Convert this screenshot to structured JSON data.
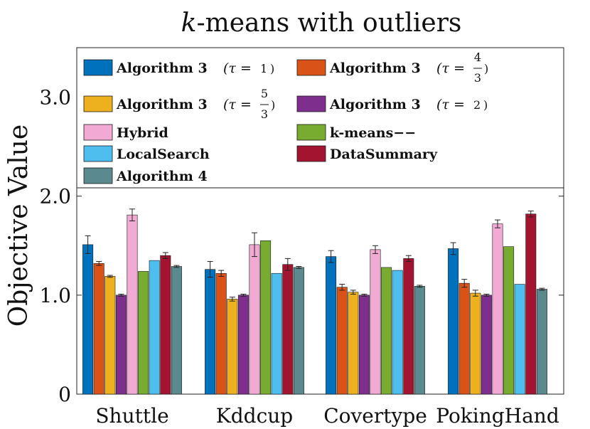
{
  "chart_data": {
    "type": "bar",
    "title": "k-means with outliers",
    "title_italic_part": "k",
    "title_rest": "-means with outliers",
    "xlabel": "",
    "ylabel": "Objective Value",
    "ylim": [
      0,
      3.5
    ],
    "yticks": [
      {
        "value": 0,
        "label": "0"
      },
      {
        "value": 1.0,
        "label": "1.0"
      },
      {
        "value": 2.0,
        "label": "2.0"
      },
      {
        "value": 3.0,
        "label": "3.0"
      }
    ],
    "categories": [
      "Shuttle",
      "Kddcup",
      "Covertype",
      "PokingHand"
    ],
    "series": [
      {
        "name": "Algorithm 3 (τ = 1)",
        "color": "#0072BD",
        "values": [
          1.51,
          1.26,
          1.39,
          1.47
        ],
        "errors": [
          0.09,
          0.08,
          0.06,
          0.06
        ]
      },
      {
        "name": "Algorithm 3 (τ = 4/3)",
        "color": "#D95319",
        "values": [
          1.32,
          1.22,
          1.08,
          1.12
        ],
        "errors": [
          0.02,
          0.03,
          0.03,
          0.04
        ]
      },
      {
        "name": "Algorithm 3 (τ = 5/3)",
        "color": "#EDB120",
        "values": [
          1.19,
          0.96,
          1.03,
          1.02
        ],
        "errors": [
          0.01,
          0.02,
          0.02,
          0.03
        ]
      },
      {
        "name": "Algorithm 3 (τ = 2)",
        "color": "#7E2F8E",
        "values": [
          1.0,
          1.0,
          1.0,
          1.0
        ],
        "errors": [
          0.01,
          0.01,
          0.01,
          0.01
        ]
      },
      {
        "name": "Hybrid",
        "color": "#F2A9D3",
        "values": [
          1.81,
          1.51,
          1.46,
          1.72
        ],
        "errors": [
          0.06,
          0.12,
          0.04,
          0.04
        ]
      },
      {
        "name": "k-means−−",
        "color": "#77AC30",
        "values": [
          1.24,
          1.55,
          1.28,
          1.49
        ],
        "errors": [
          0,
          0,
          0,
          0
        ]
      },
      {
        "name": "LocalSearch",
        "color": "#4DBEEE",
        "values": [
          1.35,
          1.22,
          1.25,
          1.11
        ],
        "errors": [
          0,
          0,
          0,
          0
        ]
      },
      {
        "name": "DataSummary",
        "color": "#A2142F",
        "values": [
          1.4,
          1.31,
          1.37,
          1.82
        ],
        "errors": [
          0.03,
          0.06,
          0.03,
          0.03
        ]
      },
      {
        "name": "Algorithm 4",
        "color": "#5A8A8E",
        "values": [
          1.29,
          1.28,
          1.09,
          1.06
        ],
        "errors": [
          0.01,
          0.01,
          0.01,
          0.01
        ]
      }
    ],
    "legend": {
      "placement": "top",
      "entries": [
        {
          "bold": "Algorithm 3",
          "tau": "1"
        },
        {
          "bold": "Algorithm 3",
          "tau_num": "4",
          "tau_den": "3"
        },
        {
          "bold": "Algorithm 3",
          "tau_num": "5",
          "tau_den": "3"
        },
        {
          "bold": "Algorithm 3",
          "tau": "2"
        },
        {
          "bold": "Hybrid"
        },
        {
          "bold": "k-means−−"
        },
        {
          "bold": "LocalSearch"
        },
        {
          "bold": "DataSummary"
        },
        {
          "bold": "Algorithm 4"
        }
      ]
    },
    "grid": false
  }
}
